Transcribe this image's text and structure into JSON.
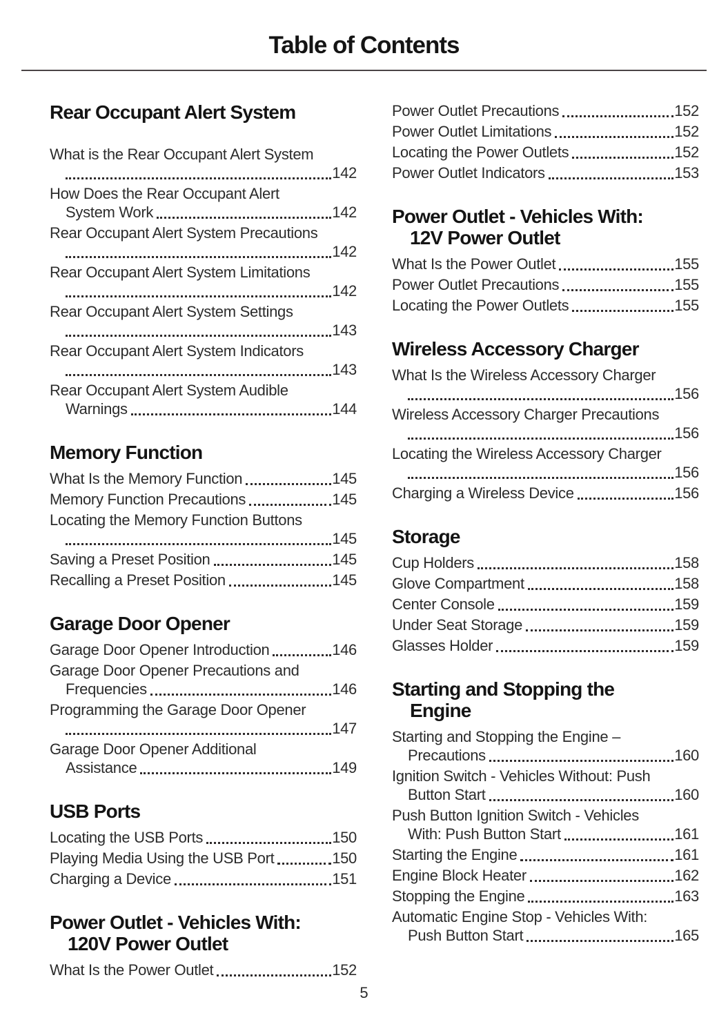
{
  "page": {
    "title": "Table of Contents",
    "page_number": "5"
  },
  "columns": [
    {
      "side": "left",
      "sections": [
        {
          "heading_lines": [
            "Rear Occupant Alert System"
          ],
          "lead_gap": true,
          "entries": [
            {
              "pre": [
                "What is the Rear Occupant Alert System"
              ],
              "last": "",
              "page": "142"
            },
            {
              "pre": [
                "How Does the Rear Occupant Alert"
              ],
              "last": "System Work",
              "page": "142"
            },
            {
              "pre": [
                "Rear Occupant Alert System Precautions"
              ],
              "last": "",
              "page": "142"
            },
            {
              "pre": [
                "Rear Occupant Alert System Limitations"
              ],
              "last": "",
              "page": "142"
            },
            {
              "pre": [
                "Rear Occupant Alert System Settings"
              ],
              "last": "",
              "page": "143"
            },
            {
              "pre": [
                "Rear Occupant Alert System Indicators"
              ],
              "last": "",
              "page": "143"
            },
            {
              "pre": [
                "Rear Occupant Alert System Audible"
              ],
              "last": "Warnings",
              "page": "144"
            }
          ]
        },
        {
          "heading_lines": [
            "Memory Function"
          ],
          "lead_gap": false,
          "entries": [
            {
              "pre": [],
              "last": "What Is the Memory Function",
              "page": "145"
            },
            {
              "pre": [],
              "last": "Memory Function Precautions",
              "page": "145"
            },
            {
              "pre": [
                "Locating the Memory Function Buttons"
              ],
              "last": "",
              "page": "145"
            },
            {
              "pre": [],
              "last": "Saving a Preset Position",
              "page": "145"
            },
            {
              "pre": [],
              "last": "Recalling a Preset Position",
              "page": "145"
            }
          ]
        },
        {
          "heading_lines": [
            "Garage Door Opener"
          ],
          "lead_gap": false,
          "entries": [
            {
              "pre": [],
              "last": "Garage Door Opener Introduction",
              "page": "146"
            },
            {
              "pre": [
                "Garage Door Opener Precautions and"
              ],
              "last": "Frequencies",
              "page": "146"
            },
            {
              "pre": [
                "Programming the Garage Door Opener"
              ],
              "last": "",
              "page": "147"
            },
            {
              "pre": [
                "Garage Door Opener Additional"
              ],
              "last": "Assistance",
              "page": "149"
            }
          ]
        },
        {
          "heading_lines": [
            "USB Ports"
          ],
          "lead_gap": false,
          "entries": [
            {
              "pre": [],
              "last": "Locating the USB Ports",
              "page": "150"
            },
            {
              "pre": [],
              "last": "Playing Media Using the USB Port",
              "page": "150"
            },
            {
              "pre": [],
              "last": "Charging a Device",
              "page": "151"
            }
          ]
        },
        {
          "heading_lines": [
            "Power Outlet - Vehicles With:",
            "120V Power Outlet"
          ],
          "lead_gap": false,
          "entries": [
            {
              "pre": [],
              "last": "What Is the Power Outlet",
              "page": "152"
            }
          ]
        }
      ]
    },
    {
      "side": "right",
      "sections": [
        {
          "heading_lines": [],
          "lead_gap": false,
          "entries": [
            {
              "pre": [],
              "last": "Power Outlet Precautions",
              "page": "152"
            },
            {
              "pre": [],
              "last": "Power Outlet Limitations",
              "page": "152"
            },
            {
              "pre": [],
              "last": "Locating the Power Outlets",
              "page": "152"
            },
            {
              "pre": [],
              "last": "Power Outlet Indicators",
              "page": "153"
            }
          ]
        },
        {
          "heading_lines": [
            "Power Outlet - Vehicles With:",
            "12V Power Outlet"
          ],
          "lead_gap": false,
          "entries": [
            {
              "pre": [],
              "last": "What Is the Power Outlet",
              "page": "155"
            },
            {
              "pre": [],
              "last": "Power Outlet Precautions",
              "page": "155"
            },
            {
              "pre": [],
              "last": "Locating the Power Outlets",
              "page": "155"
            }
          ]
        },
        {
          "heading_lines": [
            "Wireless Accessory Charger"
          ],
          "lead_gap": false,
          "entries": [
            {
              "pre": [
                "What Is the Wireless Accessory Charger"
              ],
              "last": "",
              "page": "156"
            },
            {
              "pre": [
                "Wireless Accessory Charger Precautions"
              ],
              "last": "",
              "page": "156"
            },
            {
              "pre": [
                "Locating the Wireless Accessory Charger"
              ],
              "last": "",
              "page": "156"
            },
            {
              "pre": [],
              "last": "Charging a Wireless Device",
              "page": "156"
            }
          ]
        },
        {
          "heading_lines": [
            "Storage"
          ],
          "lead_gap": false,
          "entries": [
            {
              "pre": [],
              "last": "Cup Holders",
              "page": "158"
            },
            {
              "pre": [],
              "last": "Glove Compartment",
              "page": "158"
            },
            {
              "pre": [],
              "last": "Center Console",
              "page": "159"
            },
            {
              "pre": [],
              "last": "Under Seat Storage",
              "page": "159"
            },
            {
              "pre": [],
              "last": "Glasses Holder",
              "page": "159"
            }
          ]
        },
        {
          "heading_lines": [
            "Starting and Stopping the",
            "Engine"
          ],
          "lead_gap": false,
          "entries": [
            {
              "pre": [
                "Starting and Stopping the Engine –"
              ],
              "last": "Precautions",
              "page": "160"
            },
            {
              "pre": [
                "Ignition Switch - Vehicles Without: Push"
              ],
              "last": "Button Start",
              "page": "160"
            },
            {
              "pre": [
                "Push Button Ignition Switch - Vehicles"
              ],
              "last": "With: Push Button Start",
              "page": "161"
            },
            {
              "pre": [],
              "last": "Starting the Engine",
              "page": "161"
            },
            {
              "pre": [],
              "last": "Engine Block Heater",
              "page": "162"
            },
            {
              "pre": [],
              "last": "Stopping the Engine",
              "page": "163"
            },
            {
              "pre": [
                "Automatic Engine Stop - Vehicles With:"
              ],
              "last": "Push Button Start",
              "page": "165"
            }
          ]
        }
      ]
    }
  ]
}
